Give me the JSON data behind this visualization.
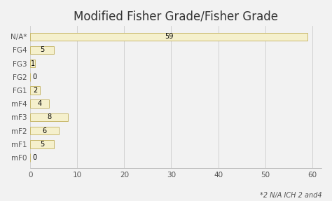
{
  "title": "Modified Fisher Grade/Fisher Grade",
  "categories": [
    "N/A*",
    "FG4",
    "FG3",
    "FG2",
    "FG1",
    "mF4",
    "mF3",
    "mF2",
    "mF1",
    "mF0"
  ],
  "values": [
    59,
    5,
    1,
    0,
    2,
    4,
    8,
    6,
    5,
    0
  ],
  "bar_color": "#f5f0cc",
  "bar_edge_color": "#c8b96e",
  "xlim": [
    0,
    62
  ],
  "xticks": [
    0,
    10,
    20,
    30,
    40,
    50,
    60
  ],
  "footnote": "*2 N/A ICH 2 and4",
  "title_fontsize": 12,
  "tick_fontsize": 7.5,
  "footnote_fontsize": 7,
  "background_color": "#f2f2f2",
  "value_label_fontsize": 7
}
